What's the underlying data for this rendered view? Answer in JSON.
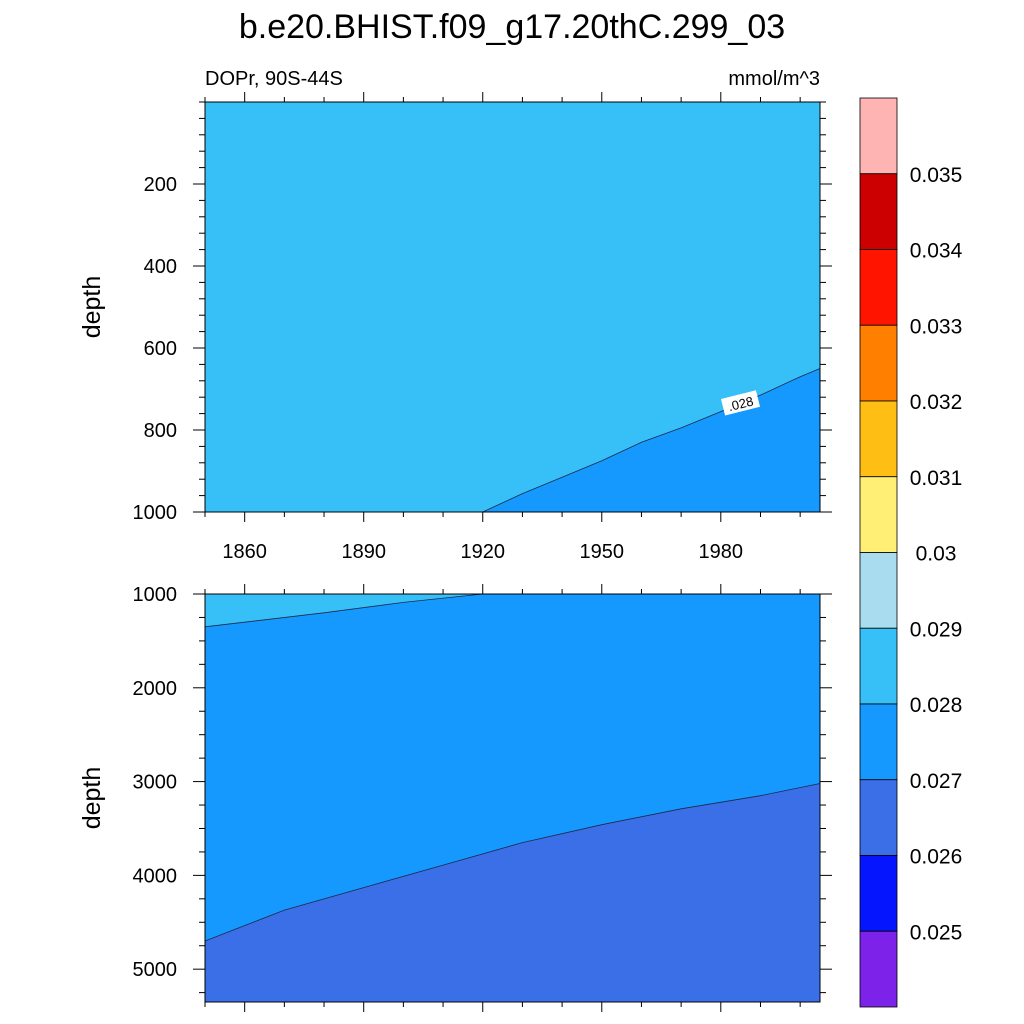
{
  "title": "b.e20.BHIST.f09_g17.20thC.299_03",
  "left_subtitle": "DOPr, 90S-44S",
  "right_subtitle": "mmol/m^3",
  "chart_data": [
    {
      "type": "contour",
      "panel": "upper",
      "xlabel": "",
      "ylabel": "depth",
      "xlim": [
        1850,
        2005
      ],
      "ylim": [
        0,
        1000
      ],
      "y_inverted": true,
      "xticks": [
        1860,
        1890,
        1920,
        1950,
        1980
      ],
      "yticks": [
        200,
        400,
        600,
        800,
        1000
      ],
      "background_level": "0.028-0.029",
      "contour_lines": [
        {
          "level": 0.028,
          "label": ".028",
          "fill_below": "0.027-0.028",
          "x": [
            1920,
            1930,
            1940,
            1950,
            1960,
            1970,
            1980,
            1990,
            2000,
            2005
          ],
          "y": [
            1000,
            955,
            915,
            875,
            830,
            795,
            755,
            715,
            670,
            650
          ]
        }
      ]
    },
    {
      "type": "contour",
      "panel": "lower",
      "xlabel": "",
      "ylabel": "depth",
      "xlim": [
        1850,
        2005
      ],
      "ylim": [
        1000,
        5350
      ],
      "y_inverted": true,
      "xticks": [
        1860,
        1890,
        1920,
        1950,
        1980
      ],
      "yticks": [
        1000,
        2000,
        3000,
        4000,
        5000
      ],
      "background_level": "0.027-0.028",
      "contour_lines": [
        {
          "level": 0.028,
          "fill_above": "0.028-0.029",
          "x": [
            1850,
            1880,
            1900,
            1920
          ],
          "y": [
            1350,
            1200,
            1090,
            1000
          ]
        },
        {
          "level": 0.027,
          "fill_below": "0.026-0.027",
          "x": [
            1850,
            1870,
            1890,
            1910,
            1930,
            1950,
            1970,
            1990,
            2005
          ],
          "y": [
            4700,
            4370,
            4130,
            3890,
            3650,
            3460,
            3290,
            3150,
            3020
          ]
        }
      ]
    }
  ],
  "colorbar": {
    "labels": [
      "0.035",
      "0.034",
      "0.033",
      "0.032",
      "0.031",
      "0.03",
      "0.029",
      "0.028",
      "0.027",
      "0.026",
      "0.025"
    ],
    "colors": [
      "#FFB4B4",
      "#CC0000",
      "#FF1400",
      "#FF7F00",
      "#FFBE14",
      "#FFF075",
      "#AADCF0",
      "#37C0F8",
      "#1599FF",
      "#3B6FE8",
      "#0516FF",
      "#7D22E8"
    ]
  },
  "level_colors": {
    "0.026-0.027": "#3B6FE8",
    "0.027-0.028": "#1599FF",
    "0.028-0.029": "#37C0F8"
  }
}
